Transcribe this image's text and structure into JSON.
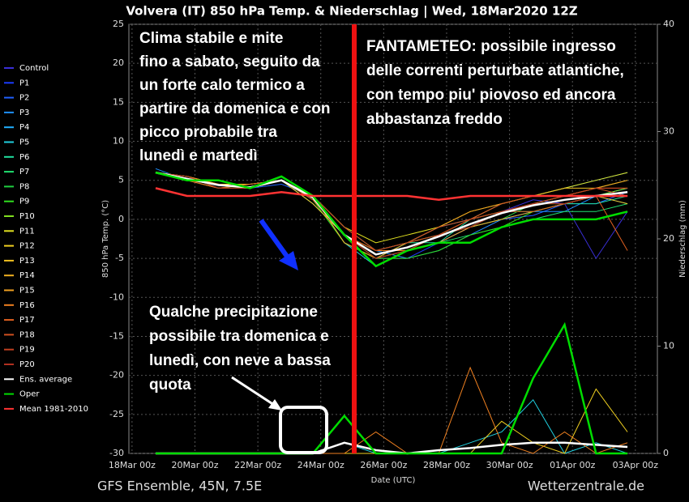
{
  "chart_data": {
    "type": "line",
    "title": "Volvera  (IT)  850 hPa Temp. & Niederschlag | Wed, 18Mar2020 12Z",
    "ylabel": "850 hPa Temp. (°C)",
    "y2label": "Niederschlag (mm)",
    "xlabel": "Date (UTC)",
    "footer_left": "GFS Ensemble, 45N, 7.5E",
    "footer_right": "Wetterzentrale.de",
    "xlim": [
      -0.1,
      16.7
    ],
    "xticks": [
      {
        "value": 0,
        "label": "18Mar 00z"
      },
      {
        "value": 2,
        "label": "20Mar 00z"
      },
      {
        "value": 4,
        "label": "22Mar 00z"
      },
      {
        "value": 6,
        "label": "24Mar 00z"
      },
      {
        "value": 8,
        "label": "26Mar 00z"
      },
      {
        "value": 10,
        "label": "28Mar 00z"
      },
      {
        "value": 12,
        "label": "30Mar 00z"
      },
      {
        "value": 14,
        "label": "01Apr 00z"
      },
      {
        "value": 16,
        "label": "03Apr 00z"
      }
    ],
    "ylim": [
      -30,
      25
    ],
    "yticks": [
      -30,
      -25,
      -20,
      -15,
      -10,
      -5,
      0,
      5,
      10,
      15,
      20,
      25
    ],
    "y2lim": [
      0,
      40
    ],
    "y2ticks": [
      0,
      10,
      20,
      30,
      40
    ],
    "grid": true,
    "annotations": [
      {
        "lines": [
          "Clima stabile e mite",
          "fino a sabato, seguito da",
          "un forte calo termico a",
          "partire da domenica e con",
          "picco probabile tra",
          "lunedì e martedì"
        ]
      },
      {
        "lines": [
          "FANTAMETEO: possibile ingresso",
          "delle correnti perturbate atlantiche,",
          "con tempo piu' piovoso ed ancora",
          "abbastanza freddo"
        ]
      },
      {
        "lines": [
          "Qualche precipitazione",
          "possibile tra domenica e",
          "lunedì, con neve a bassa",
          "quota"
        ]
      }
    ],
    "x": [
      0.75,
      1.75,
      2.75,
      3.75,
      4.75,
      5.75,
      6.75,
      7.75,
      8.75,
      9.75,
      10.75,
      11.75,
      12.75,
      13.75,
      14.75,
      15.75
    ],
    "series": [
      {
        "name": "Control",
        "color": "#3a2fd8",
        "values": [
          6,
          5,
          4.5,
          4,
          5,
          2.5,
          -2,
          -5,
          -4,
          -3,
          -1,
          1,
          2.5,
          2,
          -5,
          1
        ]
      },
      {
        "name": "P1",
        "color": "#1a3cff",
        "values": [
          6,
          5.5,
          4,
          4,
          5,
          3,
          -3,
          -5,
          -5,
          -3,
          -1,
          0,
          1,
          2,
          3,
          2
        ]
      },
      {
        "name": "P2",
        "color": "#2060ff",
        "values": [
          6,
          5,
          4.5,
          4,
          4.5,
          3,
          -1,
          -4,
          -3,
          -2,
          -1,
          0,
          0.5,
          2,
          2,
          3.5
        ]
      },
      {
        "name": "P3",
        "color": "#1e90ff",
        "values": [
          6.5,
          5,
          5,
          4,
          5,
          2,
          -2,
          -4,
          -5,
          -4,
          -2,
          0,
          1,
          1,
          3,
          4
        ]
      },
      {
        "name": "P4",
        "color": "#20b0ff",
        "values": [
          6,
          5.5,
          4.5,
          4.5,
          5,
          3,
          -2,
          -5,
          -3,
          -1,
          0,
          2,
          3,
          4,
          5,
          6
        ]
      },
      {
        "name": "P5",
        "color": "#20d0e0",
        "values": [
          6,
          5,
          4,
          4,
          5,
          3,
          -3,
          -6,
          -4,
          -2,
          -1,
          1,
          2,
          3,
          3,
          4
        ],
        "precip": [
          0,
          0,
          0,
          0,
          0,
          0,
          1,
          0,
          0,
          0,
          1,
          2,
          5,
          0,
          1,
          0
        ]
      },
      {
        "name": "P6",
        "color": "#20e0a0",
        "values": [
          6,
          5,
          4.5,
          4,
          5,
          2,
          -2,
          -4,
          -3,
          -3,
          0,
          1,
          1,
          2,
          2,
          3
        ]
      },
      {
        "name": "P7",
        "color": "#20e070",
        "values": [
          6,
          5.5,
          4,
          4,
          5,
          3,
          -1,
          -4,
          -4,
          -3,
          -2,
          -1,
          0,
          1,
          1,
          2
        ]
      },
      {
        "name": "P8",
        "color": "#20d040",
        "values": [
          6,
          5,
          4,
          4.5,
          5,
          3,
          -2,
          -5,
          -4,
          -2,
          -1,
          0,
          2,
          3,
          4,
          5
        ]
      },
      {
        "name": "P9",
        "color": "#30e020",
        "values": [
          6,
          5,
          4.5,
          4,
          5,
          2.5,
          -3,
          -5,
          -5,
          -4,
          -2,
          -1,
          1,
          2,
          3,
          3
        ]
      },
      {
        "name": "P10",
        "color": "#80e020",
        "values": [
          6,
          5.5,
          4.5,
          4,
          5,
          3,
          -2,
          -4,
          -3,
          -2,
          -1,
          1,
          2,
          2,
          3,
          4
        ]
      },
      {
        "name": "P11",
        "color": "#e0e020",
        "values": [
          6,
          5,
          4,
          4,
          5,
          3,
          -1,
          -3,
          -2,
          -1,
          1,
          2,
          3,
          4,
          5,
          6
        ]
      },
      {
        "name": "P12",
        "color": "#f0d020",
        "values": [
          6,
          5,
          4.5,
          4.5,
          5,
          3,
          -2,
          -4,
          -4,
          -2,
          0,
          1,
          2,
          3,
          3,
          2
        ],
        "precip": [
          0,
          0,
          0,
          0,
          0,
          0,
          0,
          0,
          0,
          0,
          0,
          3,
          1,
          0,
          6,
          2
        ]
      },
      {
        "name": "P13",
        "color": "#f0c020",
        "values": [
          6,
          5.5,
          4.5,
          4,
          5,
          2,
          -2,
          -5,
          -3,
          -2,
          0,
          2,
          3,
          4,
          4,
          5
        ]
      },
      {
        "name": "P14",
        "color": "#f0b020",
        "values": [
          6,
          5,
          4,
          4,
          5,
          3,
          -3,
          -5,
          -4,
          -3,
          -1,
          0,
          1,
          2,
          3,
          3
        ]
      },
      {
        "name": "P15",
        "color": "#f0a020",
        "values": [
          6,
          5,
          4.5,
          4,
          5,
          3,
          -1,
          -4,
          -3,
          -1,
          1,
          2,
          3,
          3,
          4,
          5
        ]
      },
      {
        "name": "P16",
        "color": "#f08020",
        "values": [
          6,
          5.5,
          4.5,
          4,
          5,
          3,
          -2,
          -4,
          -4,
          -2,
          0,
          1,
          2,
          3,
          4,
          4
        ],
        "precip": [
          0,
          0,
          0,
          0,
          0,
          0,
          0,
          2,
          0,
          0,
          8,
          1,
          0,
          2,
          0,
          1
        ]
      },
      {
        "name": "P17",
        "color": "#e06020",
        "values": [
          6,
          5,
          4,
          4.5,
          5,
          2.5,
          -2,
          -5,
          -4,
          -2,
          -1,
          1,
          1,
          2,
          3,
          -4
        ]
      },
      {
        "name": "P18",
        "color": "#d05020",
        "values": [
          6,
          5,
          4.5,
          4,
          5,
          3,
          -2,
          -4,
          -3,
          -1,
          0,
          2,
          3,
          3,
          4,
          3
        ]
      },
      {
        "name": "P19",
        "color": "#c04020",
        "values": [
          6,
          5,
          4.5,
          4,
          5,
          3,
          -1,
          -4,
          -3,
          -2,
          0,
          1,
          2,
          3,
          4,
          4
        ]
      },
      {
        "name": "P20",
        "color": "#b03020",
        "values": [
          6,
          5.5,
          4,
          4,
          5,
          3,
          -2,
          -5,
          -4,
          -2,
          -1,
          1,
          2,
          2,
          3,
          3
        ]
      },
      {
        "name": "Ens. average",
        "color": "#ffffff",
        "values": [
          6,
          5.2,
          4.4,
          4.1,
          5,
          2.8,
          -2,
          -4.5,
          -3.6,
          -2.2,
          -0.6,
          0.8,
          1.8,
          2.5,
          3,
          3.5
        ],
        "precip": [
          0,
          0,
          0,
          0,
          0,
          0,
          1,
          0.3,
          0,
          0.3,
          0.5,
          0.8,
          1,
          1,
          0.8,
          0.6
        ]
      },
      {
        "name": "Oper",
        "color": "#00dd00",
        "values": [
          6,
          5,
          5,
          4,
          5.5,
          3,
          -2,
          -6,
          -4,
          -3,
          -3,
          -1,
          0,
          0,
          0,
          1
        ],
        "precip": [
          0,
          0,
          0,
          0,
          0,
          0,
          3.5,
          0,
          0,
          0,
          0,
          0,
          7,
          12,
          0,
          0
        ]
      },
      {
        "name": "Mean 1981-2010",
        "color": "#ff3333",
        "values": [
          4,
          3,
          3,
          3,
          3.5,
          3,
          3,
          3,
          3,
          2.5,
          3,
          3,
          3,
          3,
          3,
          3
        ]
      }
    ]
  }
}
